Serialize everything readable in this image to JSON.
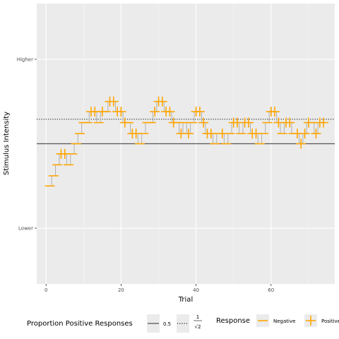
{
  "chart_data": {
    "type": "line",
    "x_axis": {
      "label": "Trial",
      "ticks": [
        0,
        20,
        40,
        60
      ],
      "range": [
        -2.5,
        77
      ]
    },
    "y_axis": {
      "label": "Stimulus Intensity",
      "tick_labels": [
        "Lower",
        "Higher"
      ],
      "tick_values": [
        0,
        10
      ],
      "range": [
        -3.3,
        13.3
      ]
    },
    "reference_lines": [
      {
        "label": "0.5",
        "value": 5,
        "style": "solid"
      },
      {
        "label": "1/√2",
        "label_num": "1",
        "label_den": "√2",
        "value": 6.45,
        "style": "dotted"
      }
    ],
    "staircase": {
      "x": [
        1,
        2,
        3,
        4,
        5,
        6,
        7,
        8,
        9,
        10,
        11,
        12,
        13,
        14,
        15,
        16,
        17,
        18,
        19,
        20,
        21,
        22,
        23,
        24,
        25,
        26,
        27,
        28,
        29,
        30,
        31,
        32,
        33,
        34,
        35,
        36,
        37,
        38,
        39,
        40,
        41,
        42,
        43,
        44,
        45,
        46,
        47,
        48,
        49,
        50,
        51,
        52,
        53,
        54,
        55,
        56,
        57,
        58,
        59,
        60,
        61,
        62,
        63,
        64,
        65,
        66,
        67,
        68,
        69,
        70,
        71,
        72,
        73,
        74
      ],
      "level": [
        2.5,
        3.1,
        3.75,
        4.4,
        4.4,
        3.75,
        4.4,
        5.0,
        5.6,
        6.25,
        6.25,
        6.9,
        6.9,
        6.25,
        6.9,
        6.9,
        7.5,
        7.5,
        6.9,
        6.9,
        6.25,
        6.25,
        5.6,
        5.6,
        5.0,
        5.6,
        6.25,
        6.25,
        6.9,
        7.5,
        7.5,
        6.9,
        6.9,
        6.25,
        6.25,
        5.6,
        6.25,
        5.6,
        6.25,
        6.9,
        6.9,
        6.25,
        5.6,
        5.6,
        5.0,
        5.6,
        5.6,
        5.0,
        5.6,
        6.25,
        6.25,
        5.6,
        6.25,
        6.25,
        5.6,
        5.6,
        5.0,
        5.6,
        6.25,
        6.9,
        6.9,
        6.25,
        5.6,
        6.25,
        6.25,
        5.6,
        5.6,
        5.0,
        5.6,
        6.25,
        6.25,
        5.6,
        6.25,
        6.25
      ],
      "response": [
        "N",
        "N",
        "N",
        "P",
        "P",
        "N",
        "N",
        "N",
        "N",
        "N",
        "N",
        "P",
        "P",
        "N",
        "P",
        "N",
        "P",
        "P",
        "P",
        "P",
        "P",
        "N",
        "P",
        "P",
        "N",
        "N",
        "N",
        "N",
        "P",
        "P",
        "P",
        "P",
        "P",
        "P",
        "N",
        "P",
        "N",
        "P",
        "N",
        "P",
        "P",
        "P",
        "P",
        "P",
        "N",
        "N",
        "P",
        "N",
        "N",
        "P",
        "P",
        "N",
        "P",
        "P",
        "P",
        "P",
        "N",
        "N",
        "N",
        "P",
        "P",
        "P",
        "N",
        "P",
        "P",
        "N",
        "P",
        "P",
        "P",
        "P",
        "N",
        "P",
        "P",
        "P"
      ]
    },
    "legends": [
      {
        "title": "Proportion Positive Responses",
        "entries": [
          "0.5",
          "1/√2"
        ]
      },
      {
        "title": "Response",
        "entries": [
          "Negative",
          "Positive"
        ]
      }
    ],
    "colors": {
      "points": "#FFA500",
      "staircase": "#b0b0b0",
      "panel": "#EBEBEB",
      "grid": "#ffffff",
      "ref_line": "#555555"
    }
  }
}
